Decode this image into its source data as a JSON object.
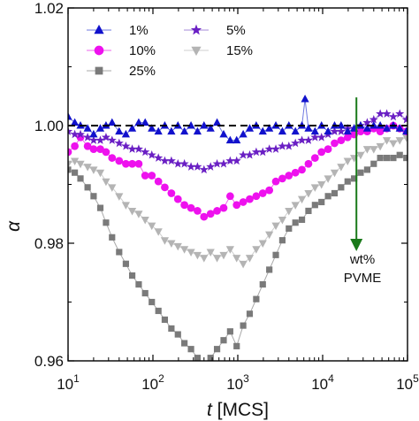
{
  "chart_data": {
    "type": "scatter",
    "x_scale": "log",
    "xlim": [
      10,
      100000
    ],
    "ylim": [
      0.96,
      1.02
    ],
    "xlabel": {
      "italic": "t",
      "rest": " [MCS]"
    },
    "ylabel": "α",
    "x_ticks": [
      {
        "value": 10,
        "label_base": "10",
        "label_exp": "1"
      },
      {
        "value": 100,
        "label_base": "10",
        "label_exp": "2"
      },
      {
        "value": 1000,
        "label_base": "10",
        "label_exp": "3"
      },
      {
        "value": 10000,
        "label_base": "10",
        "label_exp": "4"
      },
      {
        "value": 100000,
        "label_base": "10",
        "label_exp": "5"
      }
    ],
    "y_ticks": [
      {
        "value": 0.96,
        "label": "0.96"
      },
      {
        "value": 0.98,
        "label": "0.98"
      },
      {
        "value": 1.0,
        "label": "1.00"
      },
      {
        "value": 1.02,
        "label": "1.02"
      }
    ],
    "reference_line": {
      "y": 1.0,
      "style": "dashed",
      "color": "#000000"
    },
    "legend_position": "top-left",
    "annotation": {
      "lines": [
        "wt%",
        "PVME"
      ],
      "arrow_x": 25000,
      "arrow_from_y": 1.0048,
      "arrow_to_y": 0.9797,
      "color": "#1a7a1a"
    },
    "series": [
      {
        "name": "1%",
        "marker": "triangle-up",
        "color": "#1111cc",
        "line_color": "#6f79e0",
        "points": [
          [
            10,
            1.0015
          ],
          [
            12,
            1.0005
          ],
          [
            14,
            1.0
          ],
          [
            17,
            0.9995
          ],
          [
            20,
            0.9985
          ],
          [
            24,
            0.9995
          ],
          [
            28,
            1.0
          ],
          [
            33,
            1.0005
          ],
          [
            40,
            0.999
          ],
          [
            48,
            0.9985
          ],
          [
            57,
            0.9995
          ],
          [
            68,
            1.0005
          ],
          [
            81,
            1.0005
          ],
          [
            97,
            0.9995
          ],
          [
            116,
            0.999
          ],
          [
            138,
            1.0
          ],
          [
            165,
            0.999
          ],
          [
            197,
            1.0
          ],
          [
            235,
            0.999
          ],
          [
            281,
            1.0
          ],
          [
            335,
            0.999
          ],
          [
            400,
            1.0
          ],
          [
            478,
            0.9995
          ],
          [
            570,
            1.0005
          ],
          [
            681,
            0.9985
          ],
          [
            813,
            0.9975
          ],
          [
            970,
            0.9975
          ],
          [
            1158,
            0.9985
          ],
          [
            1382,
            0.9995
          ],
          [
            1650,
            1.0
          ],
          [
            1970,
            0.999
          ],
          [
            2352,
            0.9995
          ],
          [
            2807,
            1.0
          ],
          [
            3351,
            0.999
          ],
          [
            4000,
            1.0
          ],
          [
            4776,
            0.999
          ],
          [
            5700,
            1.0
          ],
          [
            6200,
            1.0045
          ],
          [
            6805,
            0.9995
          ],
          [
            8124,
            0.999
          ],
          [
            9697,
            1.0
          ],
          [
            11580,
            0.999
          ],
          [
            13820,
            1.0
          ],
          [
            16500,
            1.0
          ],
          [
            19700,
            0.999
          ],
          [
            23500,
            0.9995
          ],
          [
            28000,
            1.0
          ],
          [
            33500,
            0.9995
          ],
          [
            40000,
            1.0
          ],
          [
            47700,
            1.0
          ],
          [
            57000,
            0.9995
          ],
          [
            68000,
            1.0
          ],
          [
            81000,
            0.9995
          ],
          [
            97000,
            0.999
          ]
        ]
      },
      {
        "name": "5%",
        "marker": "star",
        "color": "#6a1fc4",
        "line_color": "#a58ad8",
        "points": [
          [
            10,
            0.999
          ],
          [
            12,
            0.9985
          ],
          [
            14,
            0.9985
          ],
          [
            17,
            0.998
          ],
          [
            20,
            0.9975
          ],
          [
            24,
            0.9975
          ],
          [
            28,
            0.998
          ],
          [
            33,
            0.9975
          ],
          [
            40,
            0.997
          ],
          [
            48,
            0.9965
          ],
          [
            57,
            0.996
          ],
          [
            68,
            0.996
          ],
          [
            81,
            0.9955
          ],
          [
            97,
            0.995
          ],
          [
            116,
            0.9945
          ],
          [
            138,
            0.994
          ],
          [
            165,
            0.994
          ],
          [
            197,
            0.9935
          ],
          [
            235,
            0.9935
          ],
          [
            281,
            0.993
          ],
          [
            335,
            0.993
          ],
          [
            400,
            0.9925
          ],
          [
            478,
            0.993
          ],
          [
            570,
            0.9935
          ],
          [
            681,
            0.9935
          ],
          [
            813,
            0.994
          ],
          [
            970,
            0.994
          ],
          [
            1158,
            0.995
          ],
          [
            1382,
            0.995
          ],
          [
            1650,
            0.9955
          ],
          [
            1970,
            0.9955
          ],
          [
            2352,
            0.996
          ],
          [
            2807,
            0.996
          ],
          [
            3351,
            0.9965
          ],
          [
            4000,
            0.9965
          ],
          [
            4776,
            0.997
          ],
          [
            5700,
            0.9975
          ],
          [
            6805,
            0.9975
          ],
          [
            8124,
            0.998
          ],
          [
            9697,
            0.998
          ],
          [
            11580,
            0.9985
          ],
          [
            13820,
            0.999
          ],
          [
            16500,
            0.999
          ],
          [
            19700,
            0.9995
          ],
          [
            23500,
            0.9995
          ],
          [
            28000,
            1.0
          ],
          [
            33500,
            1.0005
          ],
          [
            40000,
            1.001
          ],
          [
            47700,
            1.002
          ],
          [
            57000,
            1.002
          ],
          [
            68000,
            1.0015
          ],
          [
            81000,
            1.002
          ],
          [
            97000,
            1.001
          ]
        ]
      },
      {
        "name": "10%",
        "marker": "circle",
        "color": "#ee11ee",
        "line_color": "#ee66ee",
        "points": [
          [
            10,
            0.9955
          ],
          [
            12,
            0.9965
          ],
          [
            14,
            0.998
          ],
          [
            17,
            0.9965
          ],
          [
            20,
            0.996
          ],
          [
            24,
            0.996
          ],
          [
            28,
            0.9955
          ],
          [
            33,
            0.9945
          ],
          [
            40,
            0.994
          ],
          [
            48,
            0.9935
          ],
          [
            57,
            0.9935
          ],
          [
            68,
            0.9935
          ],
          [
            81,
            0.9915
          ],
          [
            97,
            0.9915
          ],
          [
            116,
            0.9905
          ],
          [
            138,
            0.9895
          ],
          [
            165,
            0.9885
          ],
          [
            197,
            0.9875
          ],
          [
            235,
            0.9865
          ],
          [
            281,
            0.986
          ],
          [
            335,
            0.9855
          ],
          [
            400,
            0.9845
          ],
          [
            478,
            0.985
          ],
          [
            570,
            0.9855
          ],
          [
            681,
            0.986
          ],
          [
            813,
            0.988
          ],
          [
            970,
            0.9865
          ],
          [
            1158,
            0.987
          ],
          [
            1382,
            0.9875
          ],
          [
            1650,
            0.988
          ],
          [
            1970,
            0.9885
          ],
          [
            2352,
            0.989
          ],
          [
            2807,
            0.9905
          ],
          [
            3351,
            0.991
          ],
          [
            4000,
            0.9915
          ],
          [
            4776,
            0.992
          ],
          [
            5700,
            0.9925
          ],
          [
            6805,
            0.9935
          ],
          [
            8124,
            0.9945
          ],
          [
            9697,
            0.9955
          ],
          [
            11580,
            0.996
          ],
          [
            13820,
            0.997
          ],
          [
            16500,
            0.9975
          ],
          [
            19700,
            0.998
          ],
          [
            23500,
            0.9985
          ],
          [
            28000,
            0.999
          ],
          [
            33500,
            0.999
          ],
          [
            40000,
            0.9995
          ],
          [
            47700,
            0.999
          ],
          [
            57000,
            0.9995
          ],
          [
            68000,
            1.0
          ],
          [
            81000,
            0.9995
          ],
          [
            97000,
            0.999
          ]
        ]
      },
      {
        "name": "15%",
        "marker": "triangle-down",
        "color": "#b4b4b4",
        "line_color": "#cfcfcf",
        "points": [
          [
            10,
            0.9935
          ],
          [
            12,
            0.994
          ],
          [
            14,
            0.9935
          ],
          [
            17,
            0.993
          ],
          [
            20,
            0.9925
          ],
          [
            24,
            0.992
          ],
          [
            28,
            0.9905
          ],
          [
            33,
            0.9895
          ],
          [
            40,
            0.988
          ],
          [
            48,
            0.9865
          ],
          [
            57,
            0.9855
          ],
          [
            68,
            0.985
          ],
          [
            81,
            0.984
          ],
          [
            97,
            0.983
          ],
          [
            116,
            0.982
          ],
          [
            138,
            0.9805
          ],
          [
            165,
            0.98
          ],
          [
            197,
            0.9795
          ],
          [
            235,
            0.979
          ],
          [
            281,
            0.9785
          ],
          [
            335,
            0.978
          ],
          [
            400,
            0.9775
          ],
          [
            478,
            0.9785
          ],
          [
            570,
            0.9775
          ],
          [
            681,
            0.978
          ],
          [
            813,
            0.979
          ],
          [
            970,
            0.9775
          ],
          [
            1158,
            0.9765
          ],
          [
            1382,
            0.9775
          ],
          [
            1650,
            0.979
          ],
          [
            1970,
            0.98
          ],
          [
            2352,
            0.9815
          ],
          [
            2807,
            0.983
          ],
          [
            3351,
            0.984
          ],
          [
            4000,
            0.9855
          ],
          [
            4776,
            0.9865
          ],
          [
            5700,
            0.9875
          ],
          [
            6805,
            0.9885
          ],
          [
            8124,
            0.9895
          ],
          [
            9697,
            0.99
          ],
          [
            11580,
            0.991
          ],
          [
            13820,
            0.992
          ],
          [
            16500,
            0.993
          ],
          [
            19700,
            0.994
          ],
          [
            23500,
            0.9945
          ],
          [
            28000,
            0.995
          ],
          [
            33500,
            0.996
          ],
          [
            40000,
            0.996
          ],
          [
            47700,
            0.9965
          ],
          [
            57000,
            0.9975
          ],
          [
            68000,
            0.997
          ],
          [
            81000,
            0.9975
          ],
          [
            97000,
            0.998
          ]
        ]
      },
      {
        "name": "25%",
        "marker": "square",
        "color": "#7a7a7a",
        "line_color": "#a8a8a8",
        "points": [
          [
            10,
            0.9925
          ],
          [
            12,
            0.992
          ],
          [
            14,
            0.991
          ],
          [
            17,
            0.9895
          ],
          [
            20,
            0.988
          ],
          [
            24,
            0.986
          ],
          [
            28,
            0.9835
          ],
          [
            33,
            0.981
          ],
          [
            40,
            0.9785
          ],
          [
            48,
            0.9765
          ],
          [
            57,
            0.9745
          ],
          [
            68,
            0.973
          ],
          [
            81,
            0.9715
          ],
          [
            97,
            0.97
          ],
          [
            116,
            0.9685
          ],
          [
            138,
            0.967
          ],
          [
            165,
            0.9655
          ],
          [
            197,
            0.9645
          ],
          [
            235,
            0.963
          ],
          [
            281,
            0.962
          ],
          [
            335,
            0.9605
          ],
          [
            400,
            0.9595
          ],
          [
            478,
            0.9605
          ],
          [
            570,
            0.962
          ],
          [
            681,
            0.9635
          ],
          [
            813,
            0.965
          ],
          [
            970,
            0.9625
          ],
          [
            1158,
            0.966
          ],
          [
            1382,
            0.968
          ],
          [
            1650,
            0.9705
          ],
          [
            1970,
            0.973
          ],
          [
            2352,
            0.9755
          ],
          [
            2807,
            0.978
          ],
          [
            3351,
            0.9805
          ],
          [
            4000,
            0.9825
          ],
          [
            4776,
            0.9835
          ],
          [
            5700,
            0.984
          ],
          [
            6805,
            0.9855
          ],
          [
            8124,
            0.9865
          ],
          [
            9697,
            0.987
          ],
          [
            11580,
            0.988
          ],
          [
            13820,
            0.9885
          ],
          [
            16500,
            0.9895
          ],
          [
            19700,
            0.9905
          ],
          [
            23500,
            0.991
          ],
          [
            28000,
            0.992
          ],
          [
            33500,
            0.9925
          ],
          [
            40000,
            0.9935
          ],
          [
            47700,
            0.9945
          ],
          [
            57000,
            0.9945
          ],
          [
            68000,
            0.9945
          ],
          [
            81000,
            0.995
          ],
          [
            97000,
            0.9945
          ]
        ]
      }
    ]
  }
}
